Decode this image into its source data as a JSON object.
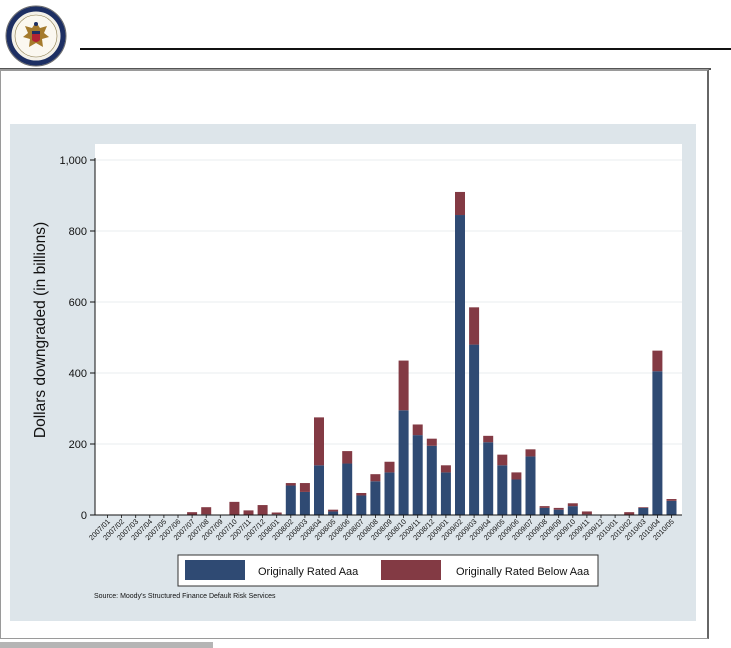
{
  "source_note": "Source: Moody's Structured Finance Default Risk Services",
  "colors": {
    "aaa": "#2f4a73",
    "below_aaa": "#833a44",
    "panel": "#dde5ea",
    "plot": "#ffffff",
    "grid": "#e8ecef"
  },
  "chart_data": {
    "type": "bar",
    "stacked": true,
    "title": "",
    "xlabel": "",
    "ylabel": "Dollars downgraded (in billions)",
    "ylim": [
      0,
      1000
    ],
    "yticks": [
      0,
      200,
      400,
      600,
      800,
      1000
    ],
    "ytick_labels": [
      "0",
      "200",
      "400",
      "600",
      "800",
      "1,000"
    ],
    "grid": true,
    "legend_position": "bottom",
    "categories": [
      "2007/01",
      "2007/02",
      "2007/03",
      "2007/04",
      "2007/05",
      "2007/06",
      "2007/07",
      "2007/08",
      "2007/09",
      "2007/10",
      "2007/11",
      "2007/12",
      "2008/01",
      "2008/02",
      "2008/03",
      "2008/04",
      "2008/05",
      "2008/06",
      "2008/07",
      "2008/08",
      "2008/09",
      "2008/10",
      "2008/11",
      "2008/12",
      "2009/01",
      "2009/02",
      "2009/03",
      "2009/04",
      "2009/05",
      "2009/06",
      "2009/07",
      "2009/08",
      "2009/09",
      "2009/10",
      "2009/11",
      "2009/12",
      "2010/01",
      "2010/02",
      "2010/03",
      "2010/04",
      "2010/05"
    ],
    "series": [
      {
        "name": "Originally Rated Aaa",
        "values": [
          0,
          0,
          0,
          0,
          0,
          0,
          0,
          2,
          0,
          0,
          0,
          0,
          2,
          83,
          65,
          140,
          10,
          145,
          55,
          95,
          120,
          295,
          225,
          195,
          120,
          845,
          480,
          205,
          140,
          100,
          165,
          20,
          15,
          25,
          2,
          0,
          0,
          0,
          20,
          405,
          40
        ]
      },
      {
        "name": "Originally Rated Below Aaa",
        "values": [
          0,
          0,
          0,
          0,
          0,
          0,
          8,
          20,
          0,
          37,
          13,
          28,
          5,
          7,
          25,
          135,
          5,
          35,
          7,
          20,
          30,
          140,
          30,
          20,
          20,
          65,
          105,
          18,
          30,
          20,
          20,
          5,
          5,
          8,
          8,
          0,
          0,
          8,
          2,
          58,
          5
        ]
      }
    ]
  }
}
